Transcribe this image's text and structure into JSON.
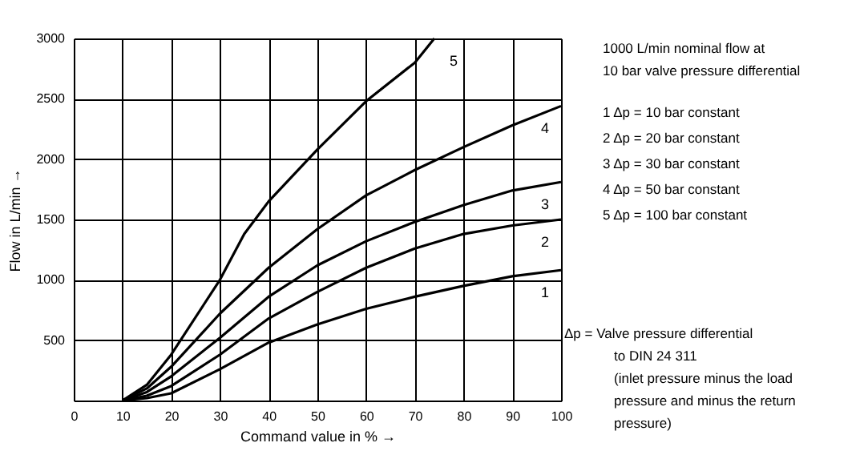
{
  "chart_data": {
    "type": "line",
    "xlabel": "Command value in % →",
    "ylabel": "Flow in L/min →",
    "xlim": [
      0,
      100
    ],
    "xticks": [
      0,
      10,
      20,
      30,
      40,
      50,
      60,
      70,
      80,
      90,
      100
    ],
    "ylim": [
      0,
      3000
    ],
    "yticks": [
      {
        "value": 0,
        "label": null
      },
      500,
      1000,
      1500,
      2000,
      2500,
      3000
    ],
    "grid": true,
    "legend": false,
    "marker": "none",
    "line_style": "solid",
    "series": [
      {
        "name": "1",
        "color": "#000000",
        "x": [
          10,
          15,
          20,
          30,
          40,
          50,
          60,
          70,
          80,
          90,
          100
        ],
        "values": [
          0,
          20,
          60,
          260,
          480,
          630,
          760,
          860,
          950,
          1030,
          1080
        ]
      },
      {
        "name": "2",
        "color": "#000000",
        "x": [
          10,
          15,
          20,
          30,
          40,
          50,
          60,
          70,
          80,
          90,
          100
        ],
        "values": [
          0,
          40,
          120,
          380,
          680,
          900,
          1100,
          1260,
          1380,
          1450,
          1500
        ]
      },
      {
        "name": "3",
        "color": "#000000",
        "x": [
          10,
          15,
          20,
          30,
          40,
          50,
          60,
          70,
          80,
          90,
          100
        ],
        "values": [
          0,
          70,
          200,
          520,
          860,
          1120,
          1320,
          1480,
          1620,
          1740,
          1810
        ]
      },
      {
        "name": "4",
        "color": "#000000",
        "x": [
          10,
          15,
          20,
          30,
          40,
          50,
          60,
          70,
          80,
          90,
          100
        ],
        "values": [
          0,
          100,
          280,
          720,
          1100,
          1420,
          1700,
          1910,
          2100,
          2280,
          2440
        ]
      },
      {
        "name": "5",
        "color": "#000000",
        "x": [
          10,
          15,
          20,
          30,
          35,
          40,
          50,
          60,
          70,
          74
        ],
        "values": [
          0,
          130,
          380,
          1000,
          1380,
          1650,
          2080,
          2480,
          2800,
          3000
        ]
      }
    ],
    "annotations": [
      "1000 L/min nominal flow at",
      "10 bar valve pressure differential",
      "1 Δp  =      10 bar  constant",
      "2 Δp  =      20 bar  constant",
      "3 Δp  =      30 bar  constant",
      "4 Δp  =      50 bar  constant",
      "5 Δp  =    100 bar  constant",
      "Δp =  Valve pressure differential",
      "to DIN 24  311",
      "(inlet pressure minus the load",
      "pressure and minus the return",
      "pressure)"
    ]
  }
}
